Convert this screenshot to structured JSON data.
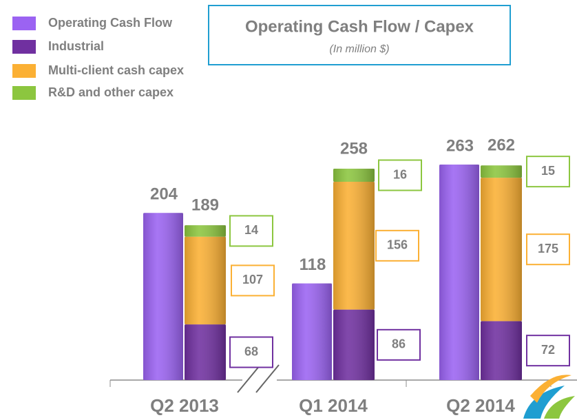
{
  "chart_data": {
    "type": "grouped-stacked-bar",
    "title": "Operating Cash Flow / Capex",
    "subtitle": "(In million $)",
    "categories": [
      "Q2 2013",
      "Q1 2014",
      "Q2 2014"
    ],
    "series": [
      {
        "name": "Operating Cash Flow",
        "color": "#9b63f2",
        "values": [
          204,
          118,
          263
        ],
        "stack": "ocf"
      },
      {
        "name": "Industrial",
        "color": "#7030a0",
        "values": [
          68,
          86,
          72
        ],
        "stack": "capex"
      },
      {
        "name": "Multi-client cash capex",
        "color": "#fbb034",
        "values": [
          107,
          156,
          175
        ],
        "stack": "capex"
      },
      {
        "name": "R&D and other capex",
        "color": "#8cc63f",
        "values": [
          14,
          16,
          15
        ],
        "stack": "capex"
      }
    ],
    "capex_totals": [
      189,
      258,
      262
    ]
  }
}
